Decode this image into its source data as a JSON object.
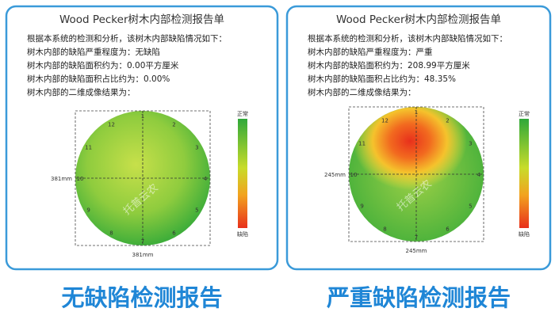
{
  "panels": [
    {
      "title": "Wood Pecker树木内部检测报告单",
      "lines": [
        "根据本系统的检测和分析，该树木内部缺陷情况如下：",
        "树木内部的缺陷严重程度为：无缺陷",
        "树木内部的缺陷面积约为：0.00平方厘米",
        "树木内部的缺陷面积占比约为：0.00%",
        "树木内部的二维成像结果为："
      ],
      "legend": {
        "top": "正常",
        "bottom": "缺陷"
      },
      "dims": {
        "height": "381mm",
        "width": "381mm"
      },
      "sensors": [
        "1",
        "2",
        "3",
        "4",
        "5",
        "6",
        "7",
        "8",
        "9",
        "10",
        "11",
        "12"
      ],
      "caption": "无缺陷检测报告"
    },
    {
      "title": "Wood Pecker树木内部检测报告单",
      "lines": [
        "根据本系统的检测和分析，该树木内部缺陷情况如下：",
        "树木内部的缺陷严重程度为：严重",
        "树木内部的缺陷面积约为：208.99平方厘米",
        "树木内部的缺陷面积占比约为：48.35%",
        "树木内部的二维成像结果为："
      ],
      "legend": {
        "top": "正常",
        "bottom": "缺陷"
      },
      "dims": {
        "height": "245mm",
        "width": "245mm"
      },
      "sensors": [
        "1",
        "2",
        "3",
        "4",
        "5",
        "6",
        "7",
        "8",
        "9",
        "10",
        "11",
        "12"
      ],
      "caption": "严重缺陷检测报告"
    }
  ],
  "watermark": "托普云农"
}
